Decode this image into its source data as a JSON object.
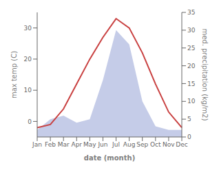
{
  "chart_data": {
    "type": "line",
    "categories": [
      "Jan",
      "Feb",
      "Mar",
      "Apr",
      "May",
      "Jun",
      "Jul",
      "Aug",
      "Sep",
      "Oct",
      "Nov",
      "Dec"
    ],
    "xlabel": "date (month)",
    "ylabel": "max temp (C)",
    "y2label": "med. precipitation (kg/m2)",
    "ylim": [
      -5,
      35
    ],
    "yticks": [
      0,
      10,
      20,
      30
    ],
    "y2lim": [
      0,
      35
    ],
    "y2ticks": [
      0,
      5,
      10,
      15,
      20,
      25,
      30,
      35
    ],
    "grid": false,
    "series": [
      {
        "type": "area",
        "axis": "y2",
        "color": "#c5cce8",
        "values": [
          2,
          5,
          6,
          4,
          5,
          16,
          30,
          26,
          10,
          3,
          2,
          2
        ]
      },
      {
        "type": "line",
        "axis": "y",
        "color": "#c94040",
        "values": [
          -2,
          -1,
          4,
          12,
          20,
          27,
          33,
          30,
          22,
          12,
          3,
          -2
        ]
      }
    ]
  }
}
